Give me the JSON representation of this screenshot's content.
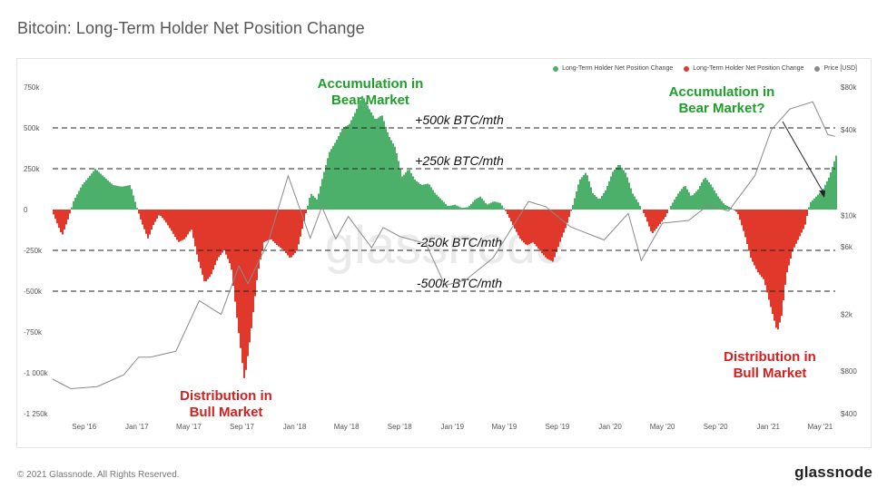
{
  "title": "Bitcoin: Long-Term Holder Net Position Change",
  "footer": {
    "copyright": "© 2021 Glassnode. All Rights Reserved.",
    "logo": "glassnode"
  },
  "watermark": "glassnode",
  "colors": {
    "positive": "#4caf6a",
    "negative": "#e0392b",
    "price": "#8a8a8a",
    "green_text": "#1e9e2a",
    "red_text": "#d41f1f"
  },
  "legend": [
    {
      "label": "Long-Term Holder Net Position Change",
      "color": "#4caf6a"
    },
    {
      "label": "Long-Term Holder Net Position Change",
      "color": "#e0392b"
    },
    {
      "label": "Price [USD]",
      "color": "#8a8a8a"
    }
  ],
  "chart_data": {
    "type": "area",
    "y_left": {
      "ticks": [
        "750k",
        "500k",
        "250k",
        "0",
        "-250k",
        "-500k",
        "-750k",
        "-1 000k",
        "-1 250k"
      ],
      "values": [
        750000,
        500000,
        250000,
        0,
        -250000,
        -500000,
        -750000,
        -1000000,
        -1250000
      ],
      "range": [
        -1250000,
        750000
      ]
    },
    "y_right": {
      "scale": "log",
      "ticks": [
        "$80k",
        "$40k",
        "$10k",
        "$6k",
        "$2k",
        "$800",
        "$400"
      ],
      "values": [
        80000,
        40000,
        10000,
        6000,
        2000,
        800,
        400
      ]
    },
    "x_ticks": [
      "Sep '16",
      "Jan '17",
      "May '17",
      "Sep '17",
      "Jan '18",
      "May '18",
      "Sep '18",
      "Jan '19",
      "May '19",
      "Sep '19",
      "Jan '20",
      "May '20",
      "Sep '20",
      "Jan '21",
      "May '21"
    ],
    "x_range": [
      "2016-06-20",
      "2021-06-05"
    ],
    "reference_lines": [
      {
        "value": 500000,
        "label": "+500k BTC/mth"
      },
      {
        "value": 250000,
        "label": "+250k BTC/mth"
      },
      {
        "value": -250000,
        "label": "-250k BTC/mth"
      },
      {
        "value": -500000,
        "label": "-500k BTC/mth"
      }
    ],
    "annotations": [
      {
        "lines": [
          "Accumulation in",
          "Bear Market"
        ],
        "tone": "green",
        "date": "2018-06-01"
      },
      {
        "lines": [
          "Accumulation in",
          "Bear Market?"
        ],
        "tone": "green",
        "date": "2021-03-15",
        "arrow_to": "2021-05-20"
      },
      {
        "lines": [
          "Distribution in",
          "Bull Market"
        ],
        "tone": "red",
        "date": "2017-09-20"
      },
      {
        "lines": [
          "Distribution in",
          "Bull Market"
        ],
        "tone": "red",
        "date": "2021-01-20"
      }
    ],
    "net_position_change": [
      [
        "2016-06-20",
        -30000
      ],
      [
        "2016-07-10",
        -160000
      ],
      [
        "2016-07-25",
        -50000
      ],
      [
        "2016-08-05",
        50000
      ],
      [
        "2016-08-25",
        150000
      ],
      [
        "2016-09-10",
        200000
      ],
      [
        "2016-09-25",
        250000
      ],
      [
        "2016-10-15",
        200000
      ],
      [
        "2016-11-05",
        150000
      ],
      [
        "2016-11-25",
        140000
      ],
      [
        "2016-12-15",
        150000
      ],
      [
        "2016-12-28",
        30000
      ],
      [
        "2017-01-10",
        -80000
      ],
      [
        "2017-01-25",
        -180000
      ],
      [
        "2017-02-05",
        -100000
      ],
      [
        "2017-02-20",
        -30000
      ],
      [
        "2017-03-05",
        -70000
      ],
      [
        "2017-03-20",
        -130000
      ],
      [
        "2017-04-05",
        -200000
      ],
      [
        "2017-04-20",
        -180000
      ],
      [
        "2017-05-05",
        -120000
      ],
      [
        "2017-05-20",
        -300000
      ],
      [
        "2017-06-05",
        -450000
      ],
      [
        "2017-06-20",
        -400000
      ],
      [
        "2017-07-05",
        -300000
      ],
      [
        "2017-07-20",
        -250000
      ],
      [
        "2017-08-05",
        -350000
      ],
      [
        "2017-08-20",
        -700000
      ],
      [
        "2017-09-05",
        -1050000
      ],
      [
        "2017-09-20",
        -750000
      ],
      [
        "2017-10-05",
        -400000
      ],
      [
        "2017-10-20",
        -200000
      ],
      [
        "2017-11-05",
        -180000
      ],
      [
        "2017-11-20",
        -220000
      ],
      [
        "2017-12-05",
        -250000
      ],
      [
        "2017-12-20",
        -300000
      ],
      [
        "2018-01-05",
        -250000
      ],
      [
        "2018-01-20",
        -80000
      ],
      [
        "2018-02-05",
        100000
      ],
      [
        "2018-02-20",
        60000
      ],
      [
        "2018-03-05",
        200000
      ],
      [
        "2018-03-20",
        350000
      ],
      [
        "2018-04-05",
        420000
      ],
      [
        "2018-04-20",
        500000
      ],
      [
        "2018-05-05",
        520000
      ],
      [
        "2018-05-20",
        600000
      ],
      [
        "2018-06-05",
        700000
      ],
      [
        "2018-06-20",
        620000
      ],
      [
        "2018-07-05",
        550000
      ],
      [
        "2018-07-20",
        580000
      ],
      [
        "2018-08-05",
        450000
      ],
      [
        "2018-08-20",
        380000
      ],
      [
        "2018-09-05",
        200000
      ],
      [
        "2018-09-20",
        250000
      ],
      [
        "2018-10-05",
        180000
      ],
      [
        "2018-10-20",
        150000
      ],
      [
        "2018-11-05",
        160000
      ],
      [
        "2018-11-20",
        100000
      ],
      [
        "2018-12-05",
        60000
      ],
      [
        "2018-12-20",
        20000
      ],
      [
        "2019-01-05",
        30000
      ],
      [
        "2019-01-20",
        10000
      ],
      [
        "2019-02-05",
        15000
      ],
      [
        "2019-02-20",
        60000
      ],
      [
        "2019-03-05",
        80000
      ],
      [
        "2019-03-20",
        30000
      ],
      [
        "2019-04-05",
        50000
      ],
      [
        "2019-04-20",
        40000
      ],
      [
        "2019-05-05",
        -20000
      ],
      [
        "2019-05-20",
        -100000
      ],
      [
        "2019-06-05",
        -180000
      ],
      [
        "2019-06-20",
        -220000
      ],
      [
        "2019-07-05",
        -200000
      ],
      [
        "2019-07-20",
        -250000
      ],
      [
        "2019-08-05",
        -300000
      ],
      [
        "2019-08-20",
        -320000
      ],
      [
        "2019-09-05",
        -200000
      ],
      [
        "2019-09-20",
        -100000
      ],
      [
        "2019-10-05",
        30000
      ],
      [
        "2019-10-20",
        180000
      ],
      [
        "2019-11-05",
        230000
      ],
      [
        "2019-11-20",
        100000
      ],
      [
        "2019-12-05",
        60000
      ],
      [
        "2019-12-20",
        120000
      ],
      [
        "2020-01-05",
        230000
      ],
      [
        "2020-01-20",
        280000
      ],
      [
        "2020-02-05",
        220000
      ],
      [
        "2020-02-20",
        100000
      ],
      [
        "2020-03-05",
        40000
      ],
      [
        "2020-03-20",
        -40000
      ],
      [
        "2020-04-05",
        -150000
      ],
      [
        "2020-04-20",
        -100000
      ],
      [
        "2020-05-05",
        -50000
      ],
      [
        "2020-05-20",
        30000
      ],
      [
        "2020-06-05",
        100000
      ],
      [
        "2020-06-20",
        150000
      ],
      [
        "2020-07-05",
        80000
      ],
      [
        "2020-07-20",
        120000
      ],
      [
        "2020-08-05",
        200000
      ],
      [
        "2020-08-20",
        150000
      ],
      [
        "2020-09-05",
        80000
      ],
      [
        "2020-09-20",
        30000
      ],
      [
        "2020-10-05",
        10000
      ],
      [
        "2020-10-20",
        -20000
      ],
      [
        "2020-11-05",
        -150000
      ],
      [
        "2020-11-20",
        -300000
      ],
      [
        "2020-12-05",
        -380000
      ],
      [
        "2020-12-20",
        -430000
      ],
      [
        "2021-01-05",
        -600000
      ],
      [
        "2021-01-20",
        -750000
      ],
      [
        "2021-01-30",
        -650000
      ],
      [
        "2021-02-10",
        -400000
      ],
      [
        "2021-02-25",
        -250000
      ],
      [
        "2021-03-10",
        -180000
      ],
      [
        "2021-03-25",
        -100000
      ],
      [
        "2021-04-05",
        40000
      ],
      [
        "2021-04-20",
        80000
      ],
      [
        "2021-05-05",
        120000
      ],
      [
        "2021-05-20",
        200000
      ],
      [
        "2021-06-05",
        330000
      ]
    ],
    "price_usd": [
      [
        "2016-06-20",
        700
      ],
      [
        "2016-08-01",
        600
      ],
      [
        "2016-10-01",
        620
      ],
      [
        "2016-12-01",
        750
      ],
      [
        "2017-01-05",
        1000
      ],
      [
        "2017-02-01",
        1000
      ],
      [
        "2017-04-01",
        1100
      ],
      [
        "2017-05-25",
        2500
      ],
      [
        "2017-07-15",
        2000
      ],
      [
        "2017-08-25",
        4400
      ],
      [
        "2017-09-15",
        3300
      ],
      [
        "2017-11-01",
        6500
      ],
      [
        "2017-12-17",
        19000
      ],
      [
        "2018-02-06",
        6900
      ],
      [
        "2018-03-05",
        11500
      ],
      [
        "2018-04-06",
        6800
      ],
      [
        "2018-05-05",
        9800
      ],
      [
        "2018-06-28",
        5900
      ],
      [
        "2018-07-25",
        8200
      ],
      [
        "2018-09-01",
        7100
      ],
      [
        "2018-11-01",
        6300
      ],
      [
        "2018-12-15",
        3200
      ],
      [
        "2019-02-01",
        3500
      ],
      [
        "2019-04-05",
        5000
      ],
      [
        "2019-06-26",
        12500
      ],
      [
        "2019-08-05",
        11500
      ],
      [
        "2019-10-01",
        8300
      ],
      [
        "2019-12-18",
        6700
      ],
      [
        "2020-02-12",
        10300
      ],
      [
        "2020-03-13",
        4800
      ],
      [
        "2020-05-01",
        8800
      ],
      [
        "2020-07-01",
        9200
      ],
      [
        "2020-08-15",
        11800
      ],
      [
        "2020-10-01",
        10700
      ],
      [
        "2020-12-01",
        19000
      ],
      [
        "2021-01-08",
        40000
      ],
      [
        "2021-02-20",
        56000
      ],
      [
        "2021-04-14",
        63000
      ],
      [
        "2021-05-19",
        37000
      ],
      [
        "2021-06-05",
        36000
      ]
    ]
  }
}
